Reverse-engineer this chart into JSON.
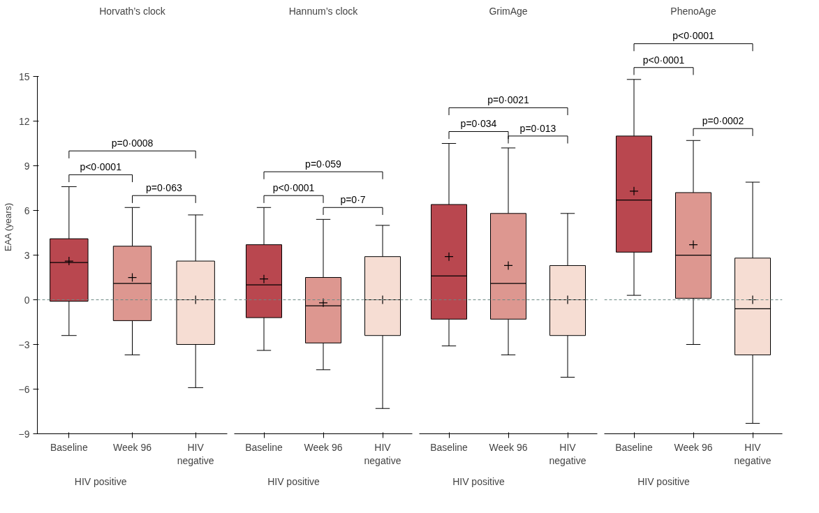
{
  "chart_data": [
    {
      "type": "box",
      "title": "Horvath’s clock",
      "ylabel": "EAA (years)",
      "categories": [
        "Baseline",
        "Week 96",
        "HIV negative"
      ],
      "colors": [
        "#b9474f",
        "#dd9790",
        "#f6ddd3"
      ],
      "boxes": [
        {
          "low": -2.4,
          "q1": -0.1,
          "median": 2.5,
          "q3": 4.1,
          "high": 7.6,
          "mean": 2.6
        },
        {
          "low": -3.7,
          "q1": -1.4,
          "median": 1.1,
          "q3": 3.6,
          "high": 6.2,
          "mean": 1.5
        },
        {
          "low": -5.9,
          "q1": -3.0,
          "median": 0.0,
          "q3": 2.6,
          "high": 5.7,
          "mean": 0.0
        }
      ],
      "annotations": [
        "p=0·0008",
        "p<0·0001",
        "p=0·063",
        "HIV positive"
      ],
      "ylim": [
        -9,
        15
      ],
      "yticks": [
        -9,
        -6,
        -3,
        0,
        3,
        6,
        9,
        12,
        15
      ],
      "grid": false,
      "marker": "cross",
      "ref_lines": [
        {
          "axis": "y",
          "value": 0,
          "color": "#6b8a85",
          "line_style": "dashed"
        }
      ]
    },
    {
      "type": "box",
      "title": "Hannum’s clock",
      "categories": [
        "Baseline",
        "Week 96",
        "HIV negative"
      ],
      "colors": [
        "#b9474f",
        "#dd9790",
        "#f6ddd3"
      ],
      "boxes": [
        {
          "low": -3.4,
          "q1": -1.2,
          "median": 1.0,
          "q3": 3.7,
          "high": 6.2,
          "mean": 1.4
        },
        {
          "low": -4.7,
          "q1": -2.9,
          "median": -0.4,
          "q3": 1.5,
          "high": 5.4,
          "mean": -0.2
        },
        {
          "low": -7.3,
          "q1": -2.4,
          "median": 0.0,
          "q3": 2.9,
          "high": 5.0,
          "mean": 0.0
        }
      ],
      "annotations": [
        "p=0·059",
        "p<0·0001",
        "p=0·7",
        "HIV positive"
      ],
      "ylim": [
        -9,
        15
      ],
      "tick_labels": "x",
      "grid": false,
      "marker": "cross",
      "ref_lines": [
        {
          "axis": "y",
          "value": 0,
          "color": "#6b8a85",
          "line_style": "dashed"
        }
      ]
    },
    {
      "type": "box",
      "title": "GrimAge",
      "categories": [
        "Baseline",
        "Week 96",
        "HIV negative"
      ],
      "colors": [
        "#b9474f",
        "#dd9790",
        "#f6ddd3"
      ],
      "boxes": [
        {
          "low": -3.1,
          "q1": -1.3,
          "median": 1.6,
          "q3": 6.4,
          "high": 10.5,
          "mean": 2.9
        },
        {
          "low": -3.7,
          "q1": -1.3,
          "median": 1.1,
          "q3": 5.8,
          "high": 10.2,
          "mean": 2.3
        },
        {
          "low": -5.2,
          "q1": -2.4,
          "median": 0.0,
          "q3": 2.3,
          "high": 5.8,
          "mean": 0.0
        }
      ],
      "annotations": [
        "p=0·0021",
        "p=0·034",
        "p=0·013",
        "HIV positive"
      ],
      "ylim": [
        -9,
        15
      ],
      "tick_labels": "x",
      "grid": false,
      "marker": "cross",
      "ref_lines": [
        {
          "axis": "y",
          "value": 0,
          "color": "#6b8a85",
          "line_style": "dashed"
        }
      ]
    },
    {
      "type": "box",
      "title": "PhenoAge",
      "categories": [
        "Baseline",
        "Week 96",
        "HIV negative"
      ],
      "colors": [
        "#b9474f",
        "#dd9790",
        "#f6ddd3"
      ],
      "boxes": [
        {
          "low": 0.3,
          "q1": 3.2,
          "median": 6.7,
          "q3": 11.0,
          "high": 14.8,
          "mean": 7.3
        },
        {
          "low": -3.0,
          "q1": 0.1,
          "median": 3.0,
          "q3": 7.2,
          "high": 10.7,
          "mean": 3.7
        },
        {
          "low": -8.3,
          "q1": -3.7,
          "median": -0.6,
          "q3": 2.8,
          "high": 7.9,
          "mean": 0.0
        }
      ],
      "annotations": [
        "p<0·0001",
        "p<0·0001",
        "p=0·0002",
        "HIV positive"
      ],
      "ylim": [
        -9,
        15
      ],
      "tick_labels": "x",
      "grid": false,
      "marker": "cross",
      "ref_lines": [
        {
          "axis": "y",
          "value": 0,
          "color": "#6b8a85",
          "line_style": "dashed"
        }
      ]
    }
  ]
}
